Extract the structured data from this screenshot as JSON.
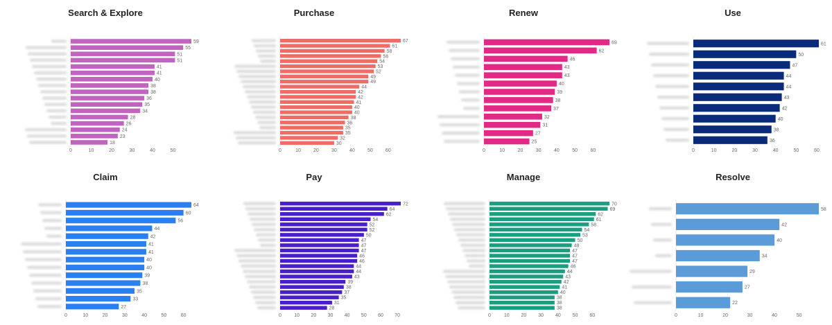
{
  "chart_data": [
    {
      "type": "bar",
      "orientation": "horizontal",
      "title": "Search & Explore",
      "color": "#c064c0",
      "values": [
        59,
        55,
        51,
        51,
        41,
        41,
        40,
        38,
        38,
        36,
        35,
        34,
        28,
        26,
        24,
        23,
        18
      ],
      "xticks": [
        0,
        10,
        20,
        30,
        40,
        50
      ],
      "xlim": [
        0,
        60
      ],
      "category_labels_legible": false
    },
    {
      "type": "bar",
      "orientation": "horizontal",
      "title": "Purchase",
      "color": "#ee6b66",
      "values": [
        67,
        61,
        58,
        56,
        54,
        53,
        52,
        49,
        49,
        44,
        42,
        42,
        41,
        40,
        40,
        38,
        36,
        35,
        35,
        32,
        30
      ],
      "xticks": [
        0,
        10,
        20,
        30,
        40,
        50,
        60
      ],
      "xlim": [
        0,
        68
      ],
      "category_labels_legible": false
    },
    {
      "type": "bar",
      "orientation": "horizontal",
      "title": "Renew",
      "color": "#e02a85",
      "values": [
        69,
        62,
        46,
        43,
        43,
        40,
        39,
        38,
        37,
        32,
        31,
        27,
        25
      ],
      "xticks": [
        0,
        10,
        20,
        30,
        40,
        50,
        60
      ],
      "xlim": [
        0,
        70
      ],
      "category_labels_legible": false
    },
    {
      "type": "bar",
      "orientation": "horizontal",
      "title": "Use",
      "color": "#0a2a7a",
      "values": [
        61,
        50,
        47,
        44,
        44,
        43,
        42,
        40,
        38,
        36
      ],
      "xticks": [
        0,
        10,
        20,
        30,
        40,
        50,
        60
      ],
      "xlim": [
        0,
        62
      ],
      "category_labels_legible": false
    },
    {
      "type": "bar",
      "orientation": "horizontal",
      "title": "Claim",
      "color": "#2a80f0",
      "values": [
        64,
        60,
        56,
        44,
        42,
        41,
        41,
        40,
        40,
        39,
        38,
        35,
        33,
        27
      ],
      "xticks": [
        0,
        10,
        20,
        30,
        40,
        50,
        60
      ],
      "xlim": [
        0,
        65
      ],
      "category_labels_legible": false
    },
    {
      "type": "bar",
      "orientation": "horizontal",
      "title": "Pay",
      "color": "#4a1ec8",
      "values": [
        72,
        64,
        62,
        54,
        52,
        52,
        50,
        47,
        47,
        47,
        46,
        46,
        44,
        44,
        43,
        39,
        38,
        37,
        35,
        31,
        28
      ],
      "xticks": [
        0,
        10,
        20,
        30,
        40,
        50,
        60,
        70
      ],
      "xlim": [
        0,
        72
      ],
      "category_labels_legible": false
    },
    {
      "type": "bar",
      "orientation": "horizontal",
      "title": "Manage",
      "color": "#1a9e80",
      "values": [
        70,
        69,
        62,
        61,
        58,
        54,
        53,
        50,
        48,
        47,
        47,
        47,
        46,
        44,
        43,
        42,
        41,
        40,
        38,
        38,
        38
      ],
      "xticks": [
        0,
        10,
        20,
        30,
        40,
        50,
        60
      ],
      "xlim": [
        0,
        70
      ],
      "category_labels_legible": false
    },
    {
      "type": "bar",
      "orientation": "horizontal",
      "title": "Resolve",
      "color": "#5b9bd8",
      "values": [
        58,
        42,
        40,
        34,
        29,
        27,
        22
      ],
      "xticks": [
        0,
        10,
        20,
        30,
        40,
        50
      ],
      "xlim": [
        0,
        60
      ],
      "category_labels_legible": false
    }
  ]
}
